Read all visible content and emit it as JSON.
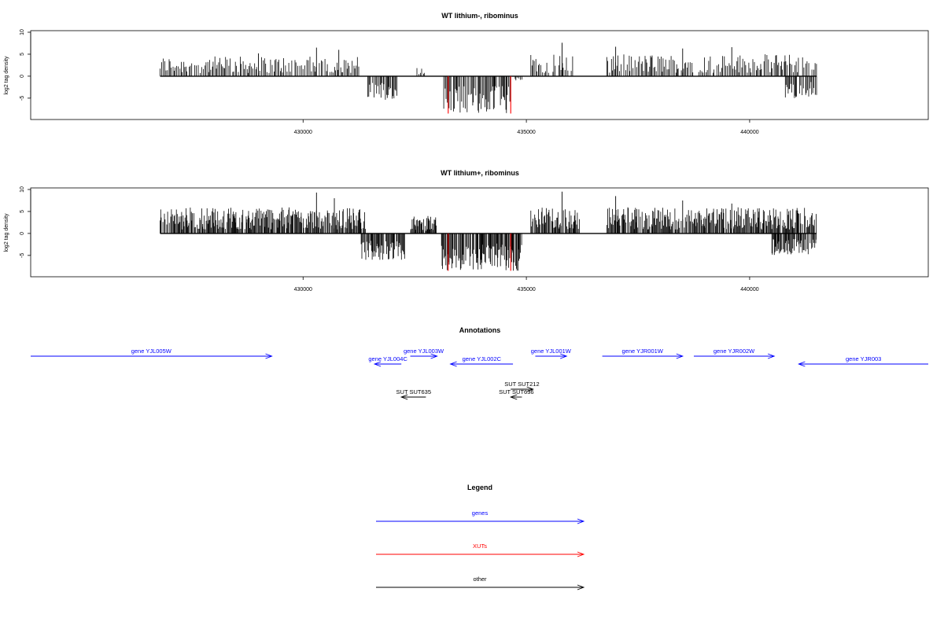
{
  "chart_data": [
    {
      "type": "bar",
      "title": "WT lithium-, ribominus",
      "ylabel": "log2 tag density",
      "ylim": [
        -9.5,
        10
      ],
      "yticks": [
        -5,
        0,
        5,
        10
      ],
      "xlim": [
        423900,
        444000
      ],
      "xticks": [
        430000,
        435000,
        440000
      ],
      "grid": false,
      "plus_regions": [
        {
          "start": 426800,
          "end": 431250,
          "max": 4.5,
          "peaks": [
            [
              429000,
              5.2
            ],
            [
              430300,
              6.5
            ],
            [
              430800,
              6.0
            ]
          ]
        },
        {
          "start": 432550,
          "end": 432750,
          "max": 2.0,
          "peaks": []
        },
        {
          "start": 435100,
          "end": 436050,
          "max": 5.0,
          "peaks": [
            [
              435800,
              7.6
            ]
          ]
        },
        {
          "start": 436800,
          "end": 441500,
          "max": 5.0,
          "peaks": [
            [
              437000,
              6.7
            ],
            [
              438500,
              6.3
            ],
            [
              439600,
              6.6
            ],
            [
              440600,
              4.8
            ]
          ]
        }
      ],
      "minus_regions": [
        {
          "start": 431450,
          "end": 432150,
          "max": 5.5
        },
        {
          "start": 433150,
          "end": 434650,
          "max": 8.5
        },
        {
          "start": 434750,
          "end": 434900,
          "max": 1.0
        },
        {
          "start": 440800,
          "end": 441500,
          "max": 5.0
        }
      ],
      "red_marks": [
        [
          433250,
          -8.5
        ],
        [
          434650,
          -8.5
        ]
      ]
    },
    {
      "type": "bar",
      "title": "WT lithium+, ribominus",
      "ylabel": "log2 tag density",
      "ylim": [
        -9.5,
        10
      ],
      "yticks": [
        -5,
        0,
        5,
        10
      ],
      "xlim": [
        423900,
        444000
      ],
      "xticks": [
        430000,
        435000,
        440000
      ],
      "grid": false,
      "plus_regions": [
        {
          "start": 426800,
          "end": 431400,
          "max": 6.0,
          "peaks": [
            [
              430300,
              9.3
            ],
            [
              430700,
              8.0
            ]
          ]
        },
        {
          "start": 432400,
          "end": 433000,
          "max": 4.0,
          "peaks": []
        },
        {
          "start": 435100,
          "end": 436200,
          "max": 6.0,
          "peaks": [
            [
              435800,
              9.5
            ]
          ]
        },
        {
          "start": 436800,
          "end": 441500,
          "max": 6.0,
          "peaks": [
            [
              437000,
              8.5
            ],
            [
              438500,
              7.5
            ],
            [
              439600,
              6.8
            ]
          ]
        }
      ],
      "minus_regions": [
        {
          "start": 431300,
          "end": 432300,
          "max": 6.0
        },
        {
          "start": 433100,
          "end": 434900,
          "max": 8.5
        },
        {
          "start": 440500,
          "end": 441500,
          "max": 5.0
        }
      ],
      "red_marks": [
        [
          433250,
          -8.5
        ],
        [
          434650,
          -8.5
        ]
      ]
    }
  ],
  "annotations": {
    "title": "Annotations",
    "features": [
      {
        "label": "gene YJL005W",
        "start": 423900,
        "end": 429300,
        "strand": "+",
        "type": "gene",
        "row": 0
      },
      {
        "label": "gene YJL004C",
        "start": 431600,
        "end": 432200,
        "strand": "-",
        "type": "gene",
        "row": 1
      },
      {
        "label": "gene YJL003W",
        "start": 432400,
        "end": 433000,
        "strand": "+",
        "type": "gene",
        "row": 0
      },
      {
        "label": "gene YJL002C",
        "start": 433300,
        "end": 434700,
        "strand": "-",
        "type": "gene",
        "row": 1
      },
      {
        "label": "gene YJL001W",
        "start": 435200,
        "end": 435900,
        "strand": "+",
        "type": "gene",
        "row": 0
      },
      {
        "label": "gene YJR001W",
        "start": 436700,
        "end": 438500,
        "strand": "+",
        "type": "gene",
        "row": 0
      },
      {
        "label": "gene YJR002W",
        "start": 438750,
        "end": 440550,
        "strand": "+",
        "type": "gene",
        "row": 0
      },
      {
        "label": "gene YJR003",
        "start": 441100,
        "end": 444000,
        "strand": "-",
        "type": "gene",
        "row": 1
      },
      {
        "label": "SUT SUT635",
        "start": 432200,
        "end": 432750,
        "strand": "-",
        "type": "other",
        "row": 3
      },
      {
        "label": "SUT SUT212",
        "start": 434650,
        "end": 435150,
        "strand": "+",
        "type": "other",
        "row": 2
      },
      {
        "label": "SUT SUT636",
        "start": 434650,
        "end": 434900,
        "strand": "-",
        "type": "other",
        "row": 3
      }
    ]
  },
  "legend": {
    "title": "Legend",
    "items": [
      {
        "label": "genes",
        "color": "#0000ff"
      },
      {
        "label": "XUTs",
        "color": "#ff0000"
      },
      {
        "label": "other",
        "color": "#000000"
      }
    ]
  },
  "colors": {
    "gene": "#0000ff",
    "xut": "#ff0000",
    "other": "#000000",
    "signal": "#000000",
    "signal_red": "#ff0000"
  }
}
